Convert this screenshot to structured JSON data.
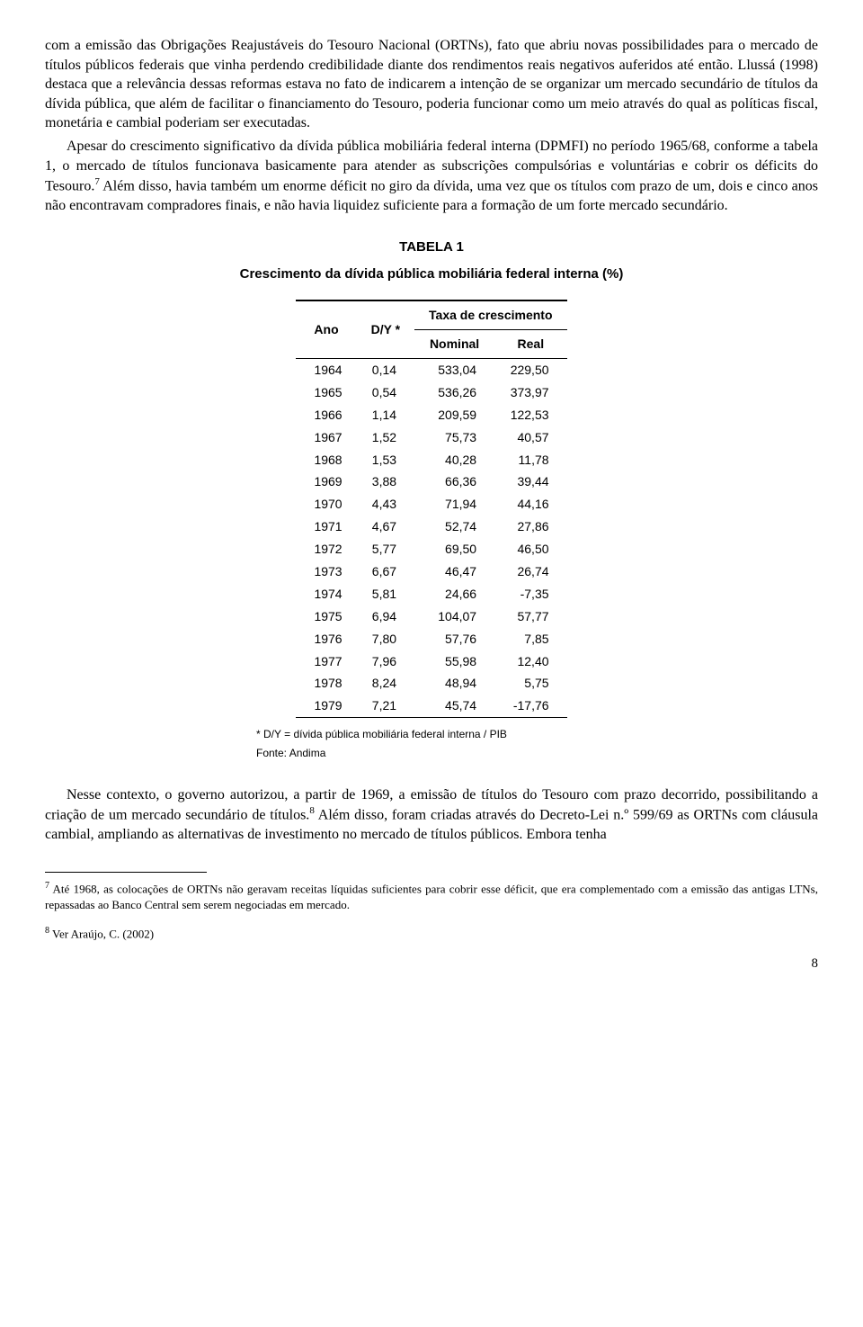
{
  "paragraphs": {
    "p1a": "com a emissão das Obrigações Reajustáveis do Tesouro Nacional (ORTNs), fato que abriu novas possibilidades para o mercado de títulos públicos federais que vinha perdendo credibilidade diante dos rendimentos reais negativos auferidos até então. Llussá (1998) destaca que a relevância dessas reformas estava no fato de indicarem a intenção de se organizar um mercado secundário de títulos da dívida pública, que além de facilitar o financiamento do Tesouro, poderia funcionar como um meio através do qual as políticas fiscal, monetária e cambial poderiam ser executadas.",
    "p2a": "Apesar do crescimento significativo da dívida pública mobiliária federal interna (DPMFI) no período 1965/68, conforme a tabela 1, o mercado de títulos funcionava basicamente para atender as subscrições compulsórias e voluntárias e cobrir os déficits do Tesouro.",
    "p2b": " Além disso, havia também um enorme déficit no giro da dívida, uma vez que os títulos com prazo de um, dois e cinco anos não encontravam compradores finais, e não havia liquidez suficiente para a formação de um forte mercado secundário.",
    "p3a": "Nesse contexto, o governo autorizou, a partir de 1969, a emissão de títulos do Tesouro com prazo decorrido, possibilitando a criação de um mercado secundário de títulos.",
    "p3b": " Além disso, foram criadas através do Decreto-Lei n.º 599/69 as ORTNs com cláusula cambial, ampliando as alternativas de investimento no mercado de títulos públicos. Embora tenha"
  },
  "refs": {
    "r7": "7",
    "r8": "8"
  },
  "table": {
    "title": "TABELA 1",
    "subtitle": "Crescimento da dívida pública mobiliária federal interna (%)",
    "head": {
      "ano": "Ano",
      "dy": "D/Y *",
      "grp": "Taxa de crescimento",
      "nominal": "Nominal",
      "real": "Real"
    },
    "rows": [
      {
        "ano": "1964",
        "dy": "0,14",
        "nom": "533,04",
        "real": "229,50"
      },
      {
        "ano": "1965",
        "dy": "0,54",
        "nom": "536,26",
        "real": "373,97"
      },
      {
        "ano": "1966",
        "dy": "1,14",
        "nom": "209,59",
        "real": "122,53"
      },
      {
        "ano": "1967",
        "dy": "1,52",
        "nom": "75,73",
        "real": "40,57"
      },
      {
        "ano": "1968",
        "dy": "1,53",
        "nom": "40,28",
        "real": "11,78"
      },
      {
        "ano": "1969",
        "dy": "3,88",
        "nom": "66,36",
        "real": "39,44"
      },
      {
        "ano": "1970",
        "dy": "4,43",
        "nom": "71,94",
        "real": "44,16"
      },
      {
        "ano": "1971",
        "dy": "4,67",
        "nom": "52,74",
        "real": "27,86"
      },
      {
        "ano": "1972",
        "dy": "5,77",
        "nom": "69,50",
        "real": "46,50"
      },
      {
        "ano": "1973",
        "dy": "6,67",
        "nom": "46,47",
        "real": "26,74"
      },
      {
        "ano": "1974",
        "dy": "5,81",
        "nom": "24,66",
        "real": "-7,35"
      },
      {
        "ano": "1975",
        "dy": "6,94",
        "nom": "104,07",
        "real": "57,77"
      },
      {
        "ano": "1976",
        "dy": "7,80",
        "nom": "57,76",
        "real": "7,85"
      },
      {
        "ano": "1977",
        "dy": "7,96",
        "nom": "55,98",
        "real": "12,40"
      },
      {
        "ano": "1978",
        "dy": "8,24",
        "nom": "48,94",
        "real": "5,75"
      },
      {
        "ano": "1979",
        "dy": "7,21",
        "nom": "45,74",
        "real": "-17,76"
      }
    ],
    "note1": "* D/Y = dívida pública mobiliária federal interna / PIB",
    "note2": "Fonte: Andima"
  },
  "footnotes": {
    "f7num": "7",
    "f7": " Até 1968, as colocações de ORTNs não geravam receitas líquidas suficientes para cobrir esse déficit, que era complementado com a emissão das antigas LTNs, repassadas ao Banco Central sem serem negociadas em mercado.",
    "f8num": "8",
    "f8": " Ver Araújo, C. (2002)"
  },
  "pagenum": "8"
}
